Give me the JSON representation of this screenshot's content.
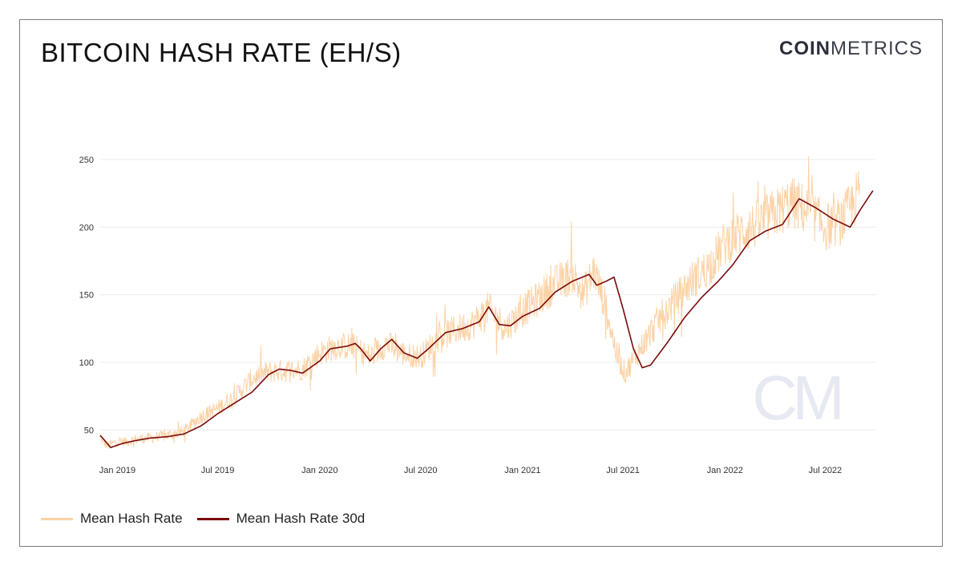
{
  "title": "BITCOIN HASH RATE (EH/S)",
  "logo": {
    "bold": "COIN",
    "light": "METRICS",
    "watermark": "CM"
  },
  "colors": {
    "raw": "#fcd2a6",
    "smooth": "#7a0b0b",
    "grid": "#ececec",
    "watermark": "#e6e9f2"
  },
  "chart_data": {
    "type": "line",
    "title": "BITCOIN HASH RATE (EH/S)",
    "xlabel": "",
    "ylabel": "",
    "x_tick_labels": [
      "Jan 2019",
      "Jul 2019",
      "Jan 2020",
      "Jul 2020",
      "Jan 2021",
      "Jul 2021",
      "Jan 2022",
      "Jul 2022"
    ],
    "y_ticks": [
      50,
      100,
      150,
      200,
      250
    ],
    "xlim": [
      "2018-12-01",
      "2022-10-01"
    ],
    "ylim": [
      30,
      282
    ],
    "grid": true,
    "legend_position": "bottom-left",
    "series": [
      {
        "name": "Mean Hash Rate",
        "noise": "high",
        "points": [
          [
            "2018-12-01",
            44
          ],
          [
            "2018-12-15",
            38
          ],
          [
            "2019-01-01",
            42
          ],
          [
            "2019-01-15",
            41
          ],
          [
            "2019-02-01",
            43
          ],
          [
            "2019-03-01",
            44
          ],
          [
            "2019-04-01",
            46
          ],
          [
            "2019-05-01",
            49
          ],
          [
            "2019-06-01",
            60
          ],
          [
            "2019-07-01",
            66
          ],
          [
            "2019-08-01",
            75
          ],
          [
            "2019-09-01",
            88
          ],
          [
            "2019-10-01",
            93
          ],
          [
            "2019-11-01",
            94
          ],
          [
            "2019-12-01",
            95
          ],
          [
            "2020-01-01",
            107
          ],
          [
            "2020-02-01",
            112
          ],
          [
            "2020-03-01",
            112
          ],
          [
            "2020-04-01",
            104
          ],
          [
            "2020-05-01",
            114
          ],
          [
            "2020-06-01",
            106
          ],
          [
            "2020-07-01",
            104
          ],
          [
            "2020-08-01",
            118
          ],
          [
            "2020-09-01",
            124
          ],
          [
            "2020-10-01",
            128
          ],
          [
            "2020-11-01",
            140
          ],
          [
            "2020-12-01",
            125
          ],
          [
            "2021-01-01",
            138
          ],
          [
            "2021-02-01",
            148
          ],
          [
            "2021-03-01",
            158
          ],
          [
            "2021-04-01",
            165
          ],
          [
            "2021-04-20",
            150
          ],
          [
            "2021-05-10",
            168
          ],
          [
            "2021-06-01",
            140
          ],
          [
            "2021-06-20",
            105
          ],
          [
            "2021-07-05",
            92
          ],
          [
            "2021-08-01",
            110
          ],
          [
            "2021-09-01",
            130
          ],
          [
            "2021-10-01",
            145
          ],
          [
            "2021-11-01",
            160
          ],
          [
            "2021-12-01",
            170
          ],
          [
            "2022-01-01",
            188
          ],
          [
            "2022-02-01",
            197
          ],
          [
            "2022-03-01",
            202
          ],
          [
            "2022-04-01",
            210
          ],
          [
            "2022-05-01",
            218
          ],
          [
            "2022-06-01",
            212
          ],
          [
            "2022-07-01",
            200
          ],
          [
            "2022-08-01",
            205
          ],
          [
            "2022-09-01",
            225
          ]
        ]
      },
      {
        "name": "Mean Hash Rate 30d",
        "noise": "none",
        "points": [
          [
            "2018-12-01",
            46
          ],
          [
            "2018-12-20",
            37
          ],
          [
            "2019-01-10",
            40
          ],
          [
            "2019-02-01",
            42
          ],
          [
            "2019-03-01",
            44
          ],
          [
            "2019-04-01",
            45
          ],
          [
            "2019-05-01",
            47
          ],
          [
            "2019-06-01",
            53
          ],
          [
            "2019-07-01",
            62
          ],
          [
            "2019-08-01",
            70
          ],
          [
            "2019-09-01",
            78
          ],
          [
            "2019-10-01",
            91
          ],
          [
            "2019-10-20",
            95
          ],
          [
            "2019-11-10",
            94
          ],
          [
            "2019-12-01",
            92
          ],
          [
            "2020-01-01",
            101
          ],
          [
            "2020-01-20",
            110
          ],
          [
            "2020-02-20",
            112
          ],
          [
            "2020-03-05",
            114
          ],
          [
            "2020-03-15",
            110
          ],
          [
            "2020-04-01",
            101
          ],
          [
            "2020-04-20",
            110
          ],
          [
            "2020-05-10",
            117
          ],
          [
            "2020-06-01",
            107
          ],
          [
            "2020-06-25",
            103
          ],
          [
            "2020-07-15",
            110
          ],
          [
            "2020-08-15",
            122
          ],
          [
            "2020-09-15",
            125
          ],
          [
            "2020-10-15",
            130
          ],
          [
            "2020-11-01",
            141
          ],
          [
            "2020-11-20",
            128
          ],
          [
            "2020-12-10",
            127
          ],
          [
            "2021-01-01",
            134
          ],
          [
            "2021-02-01",
            140
          ],
          [
            "2021-03-01",
            152
          ],
          [
            "2021-04-01",
            160
          ],
          [
            "2021-05-01",
            165
          ],
          [
            "2021-05-15",
            157
          ],
          [
            "2021-06-01",
            160
          ],
          [
            "2021-06-15",
            163
          ],
          [
            "2021-07-01",
            140
          ],
          [
            "2021-07-20",
            110
          ],
          [
            "2021-08-05",
            96
          ],
          [
            "2021-08-20",
            98
          ],
          [
            "2021-09-20",
            115
          ],
          [
            "2021-10-20",
            133
          ],
          [
            "2021-11-20",
            148
          ],
          [
            "2021-12-20",
            160
          ],
          [
            "2022-01-15",
            172
          ],
          [
            "2022-02-15",
            190
          ],
          [
            "2022-03-15",
            197
          ],
          [
            "2022-04-15",
            202
          ],
          [
            "2022-05-15",
            221
          ],
          [
            "2022-06-15",
            214
          ],
          [
            "2022-07-15",
            206
          ],
          [
            "2022-08-15",
            200
          ],
          [
            "2022-09-01",
            212
          ],
          [
            "2022-09-25",
            227
          ]
        ]
      }
    ]
  },
  "legend": [
    {
      "label": "Mean Hash Rate",
      "color": "#fcd2a6"
    },
    {
      "label": "Mean Hash Rate 30d",
      "color": "#7a0b0b"
    }
  ]
}
